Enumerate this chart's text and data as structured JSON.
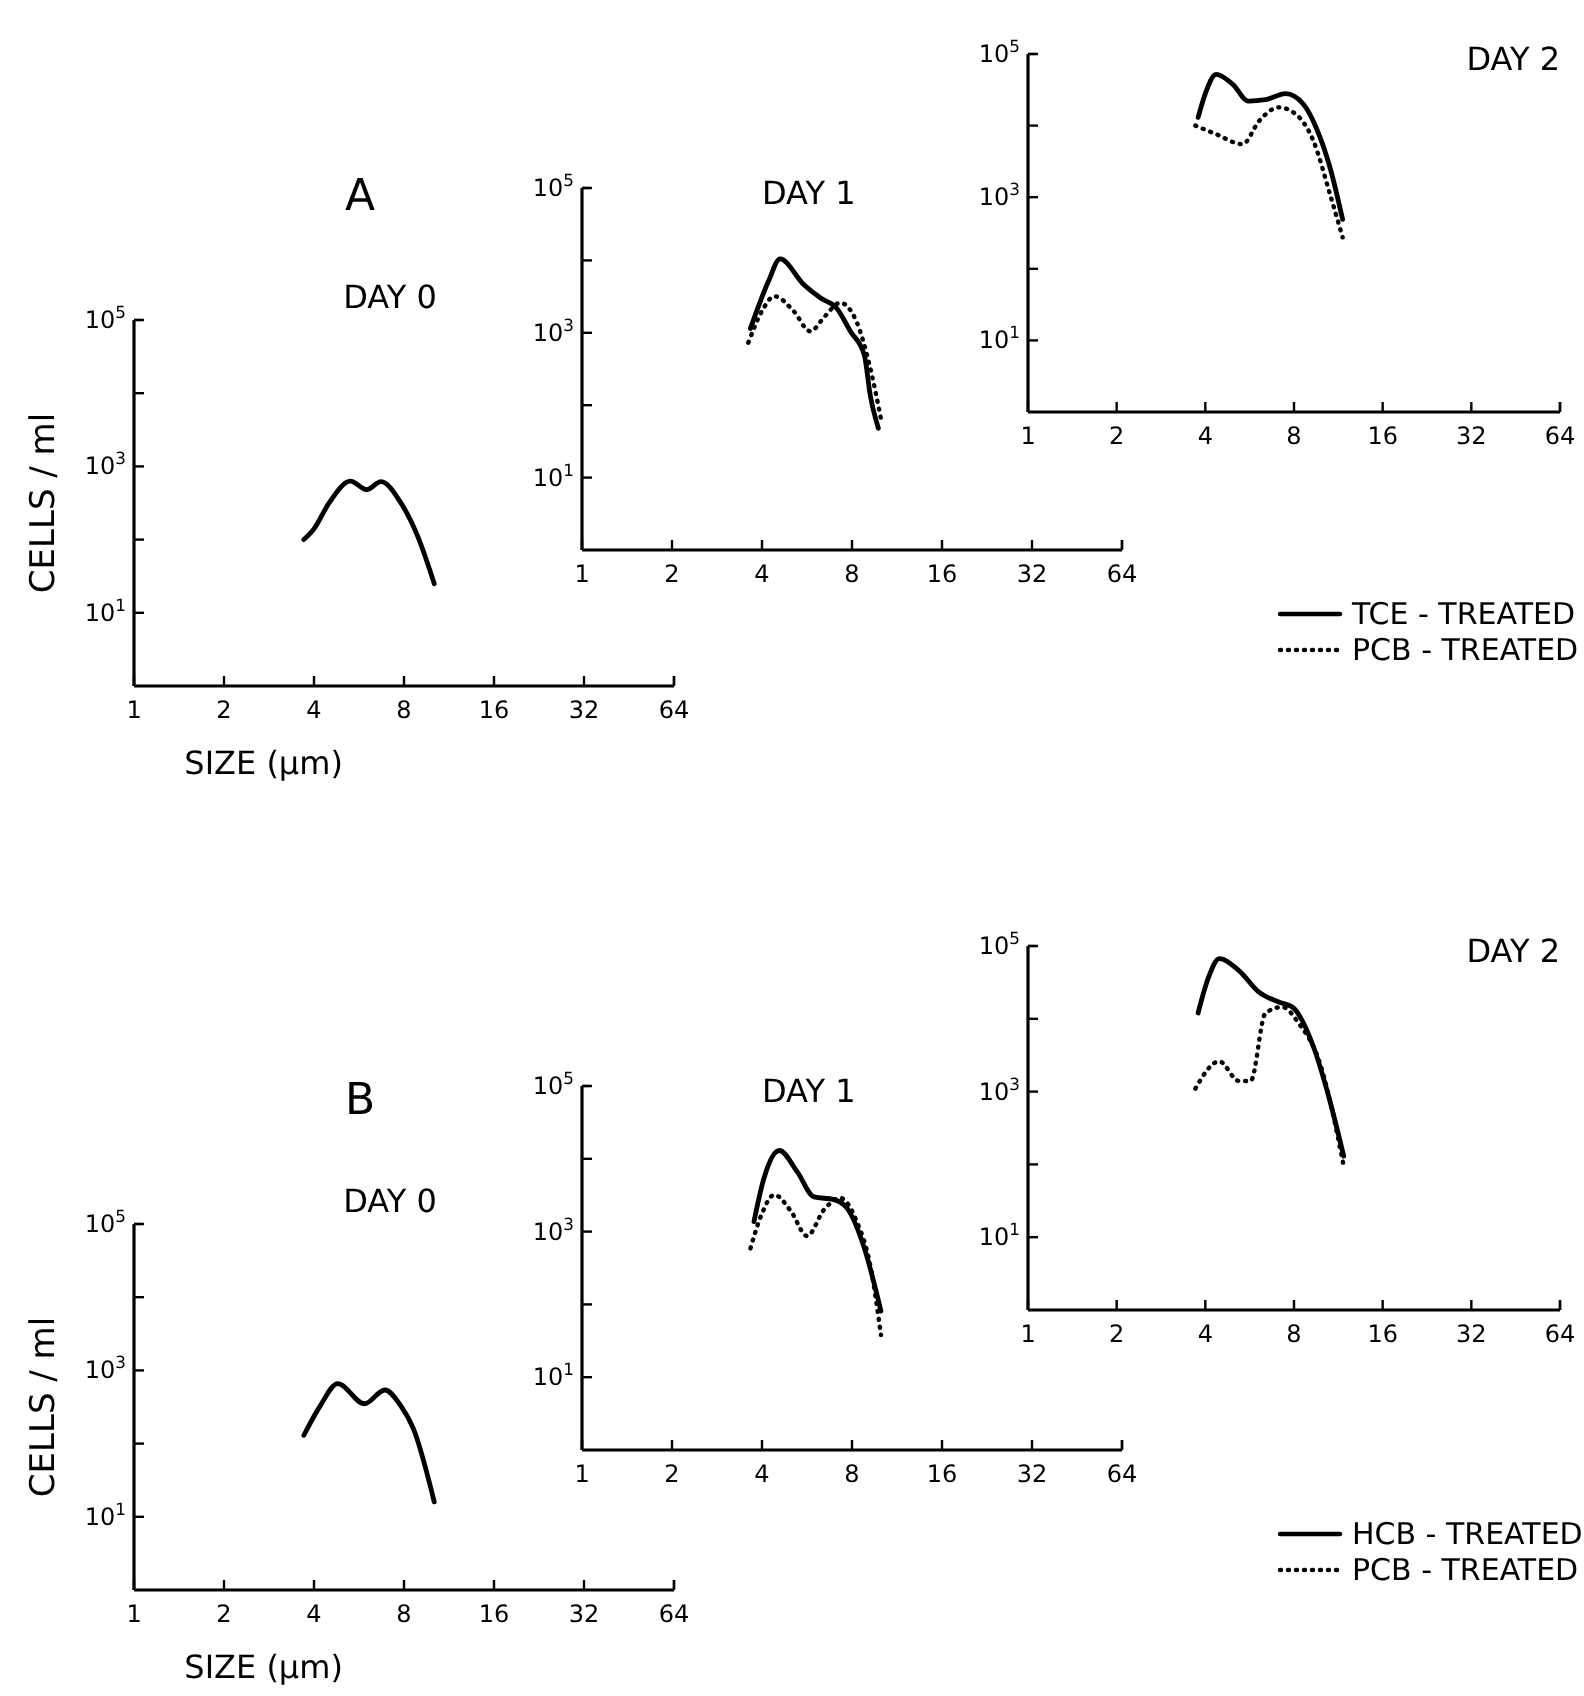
{
  "chart_data": [
    {
      "type": "line",
      "title": "DAY 0",
      "xlabel": "SIZE (µm)",
      "ylabel": "CELLS / ml",
      "annotations": [
        "A"
      ],
      "log": "xy",
      "grid": false,
      "marker": "none",
      "xlim": [
        1,
        64
      ],
      "xticks": [
        1,
        2,
        4,
        8,
        16,
        32,
        64
      ],
      "ylim": [
        1,
        100000
      ],
      "yticks": [
        {
          "value": 100000,
          "label": "10$^{5}$"
        },
        {
          "value": 10000,
          "label": null
        },
        {
          "value": 1000,
          "label": "10$^{3}$"
        },
        {
          "value": 100,
          "label": null
        },
        {
          "value": 10,
          "label": "10$^{1}$"
        }
      ],
      "series": [
        {
          "color": "#000000",
          "line_style": "solid",
          "x": [
            3.7,
            4.0,
            4.5,
            5.3,
            6.0,
            6.7,
            7.8,
            8.9,
            10.1
          ],
          "values": [
            100,
            140,
            320,
            630,
            480,
            620,
            320,
            110,
            25
          ]
        }
      ]
    },
    {
      "type": "line",
      "title": "DAY 1",
      "log": "xy",
      "grid": false,
      "marker": "none",
      "xlim": [
        1,
        64
      ],
      "xticks": [
        1,
        2,
        4,
        8,
        16,
        32,
        64
      ],
      "ylim": [
        1,
        100000
      ],
      "yticks": [
        {
          "value": 100000,
          "label": "10$^{5}$"
        },
        {
          "value": 10000,
          "label": null
        },
        {
          "value": 1000,
          "label": "10$^{3}$"
        },
        {
          "value": 100,
          "label": null
        },
        {
          "value": 10,
          "label": "10$^{1}$"
        }
      ],
      "series": [
        {
          "color": "#000000",
          "line_style": "solid",
          "x": [
            3.66,
            4.2,
            4.6,
            5.5,
            6.3,
            7.1,
            7.9,
            8.8,
            9.2,
            9.8
          ],
          "values": [
            1150,
            5100,
            10500,
            4700,
            3000,
            2200,
            1050,
            490,
            140,
            48
          ]
        },
        {
          "color": "#000000",
          "line_style": "dotted",
          "x": [
            3.6,
            4.0,
            4.4,
            5.1,
            5.8,
            6.5,
            7.3,
            8.3,
            9.2,
            10
          ],
          "values": [
            730,
            2000,
            3200,
            2000,
            1050,
            1700,
            2600,
            1400,
            330,
            65
          ]
        }
      ]
    },
    {
      "type": "line",
      "title": "DAY 2",
      "log": "xy",
      "grid": false,
      "marker": "none",
      "legend": "bottom right",
      "xlim": [
        1,
        64
      ],
      "xticks": [
        1,
        2,
        4,
        8,
        16,
        32,
        64
      ],
      "ylim": [
        1,
        100000
      ],
      "yticks": [
        {
          "value": 100000,
          "label": "10$^{5}$"
        },
        {
          "value": 10000,
          "label": null
        },
        {
          "value": 1000,
          "label": "10$^{3}$"
        },
        {
          "value": 100,
          "label": null
        },
        {
          "value": 10,
          "label": "10$^{1}$"
        }
      ],
      "series": [
        {
          "name": "TCE - TREATED",
          "color": "#000000",
          "line_style": "solid",
          "x": [
            3.78,
            4.0,
            4.35,
            4.95,
            5.6,
            6.4,
            7.5,
            8.6,
            9.5,
            10.6,
            11.7
          ],
          "values": [
            13000,
            28000,
            52000,
            38000,
            22000,
            23000,
            28000,
            20000,
            9500,
            2600,
            490
          ]
        },
        {
          "name": "PCB - TREATED",
          "color": "#000000",
          "line_style": "dotted",
          "x": [
            3.7,
            4.35,
            5.35,
            6.1,
            7.1,
            8.1,
            9.3,
            10.6,
            11.7
          ],
          "values": [
            10000,
            7600,
            5500,
            11700,
            18000,
            14500,
            6200,
            1100,
            275
          ]
        }
      ]
    },
    {
      "type": "line",
      "title": "DAY 0",
      "xlabel": "SIZE (µm)",
      "ylabel": "CELLS / ml",
      "annotations": [
        "B"
      ],
      "log": "xy",
      "grid": false,
      "marker": "none",
      "xlim": [
        1,
        64
      ],
      "xticks": [
        1,
        2,
        4,
        8,
        16,
        32,
        64
      ],
      "ylim": [
        1,
        100000
      ],
      "yticks": [
        {
          "value": 100000,
          "label": "10$^{5}$"
        },
        {
          "value": 10000,
          "label": null
        },
        {
          "value": 1000,
          "label": "10$^{3}$"
        },
        {
          "value": 100,
          "label": null
        },
        {
          "value": 10,
          "label": "10$^{1}$"
        }
      ],
      "series": [
        {
          "color": "#000000",
          "line_style": "solid",
          "x": [
            3.7,
            4.2,
            4.8,
            5.9,
            6.9,
            7.8,
            8.6,
            10.1
          ],
          "values": [
            130,
            330,
            660,
            350,
            540,
            330,
            160,
            16
          ]
        }
      ]
    },
    {
      "type": "line",
      "title": "DAY 1",
      "log": "xy",
      "grid": false,
      "marker": "none",
      "xlim": [
        1,
        64
      ],
      "xticks": [
        1,
        2,
        4,
        8,
        16,
        32,
        64
      ],
      "ylim": [
        1,
        100000
      ],
      "yticks": [
        {
          "value": 100000,
          "label": "10$^{5}$"
        },
        {
          "value": 10000,
          "label": null
        },
        {
          "value": 1000,
          "label": "10$^{3}$"
        },
        {
          "value": 100,
          "label": null
        },
        {
          "value": 10,
          "label": "10$^{1}$"
        }
      ],
      "series": [
        {
          "color": "#000000",
          "line_style": "solid",
          "x": [
            3.76,
            4.06,
            4.57,
            5.25,
            5.97,
            6.97,
            7.7,
            8.8,
            10
          ],
          "values": [
            1370,
            5400,
            13000,
            6600,
            3000,
            2750,
            2100,
            590,
            81
          ]
        },
        {
          "color": "#000000",
          "line_style": "dotted",
          "x": [
            3.66,
            3.96,
            4.4,
            5.0,
            5.66,
            6.45,
            7.3,
            8.3,
            9.2,
            10
          ],
          "values": [
            590,
            1600,
            3200,
            1900,
            870,
            2000,
            2900,
            1370,
            350,
            38
          ]
        }
      ]
    },
    {
      "type": "line",
      "title": "DAY 2",
      "log": "xy",
      "grid": false,
      "marker": "none",
      "legend": "bottom right",
      "xlim": [
        1,
        64
      ],
      "xticks": [
        1,
        2,
        4,
        8,
        16,
        32,
        64
      ],
      "ylim": [
        1,
        100000
      ],
      "yticks": [
        {
          "value": 100000,
          "label": "10$^{5}$"
        },
        {
          "value": 10000,
          "label": null
        },
        {
          "value": 1000,
          "label": "10$^{3}$"
        },
        {
          "value": 100,
          "label": null
        },
        {
          "value": 10,
          "label": "10$^{1}$"
        }
      ],
      "series": [
        {
          "name": "HCB - TREATED",
          "color": "#000000",
          "line_style": "solid",
          "x": [
            3.78,
            4.1,
            4.46,
            5.2,
            6.1,
            7.1,
            7.9,
            9.3,
            10.5,
            11.8
          ],
          "values": [
            12000,
            37000,
            67000,
            46000,
            23000,
            17000,
            14500,
            4200,
            850,
            130
          ]
        },
        {
          "name": "PCB - TREATED",
          "color": "#000000",
          "line_style": "dotted",
          "x": [
            3.7,
            4.46,
            5.2,
            5.7,
            6.4,
            7.3,
            8.3,
            9.8,
            11.8
          ],
          "values": [
            1100,
            2600,
            1400,
            1400,
            12000,
            14500,
            8700,
            2450,
            95
          ]
        }
      ]
    }
  ]
}
